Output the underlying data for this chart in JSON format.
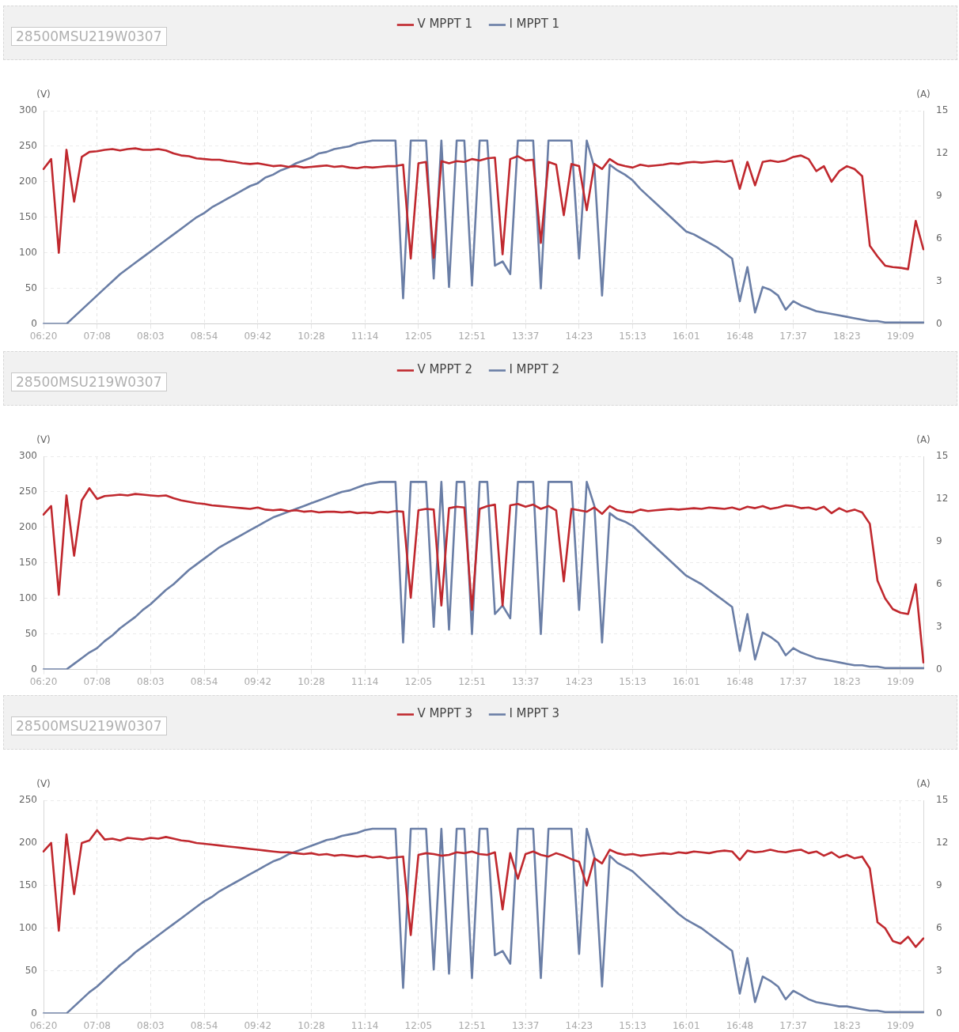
{
  "chart_data": [
    {
      "type": "line",
      "subtitle": "28500MSU219W0307",
      "ylabel": "(V)",
      "y2label": "(A)",
      "grid": true,
      "legend": "top",
      "categories": [
        "06:20",
        null,
        null,
        null,
        null,
        null,
        null,
        "07:08",
        null,
        null,
        null,
        null,
        null,
        null,
        "08:03",
        null,
        null,
        null,
        null,
        null,
        null,
        "08:54",
        null,
        null,
        null,
        null,
        null,
        null,
        "09:42",
        null,
        null,
        null,
        null,
        null,
        null,
        "10:28",
        null,
        null,
        null,
        null,
        null,
        null,
        "11:14",
        null,
        null,
        null,
        null,
        null,
        null,
        "12:05",
        null,
        null,
        null,
        null,
        null,
        null,
        "12:51",
        null,
        null,
        null,
        null,
        null,
        null,
        "13:37",
        null,
        null,
        null,
        null,
        null,
        null,
        "14:23",
        null,
        null,
        null,
        null,
        null,
        null,
        "15:13",
        null,
        null,
        null,
        null,
        null,
        null,
        "16:01",
        null,
        null,
        null,
        null,
        null,
        null,
        "16:48",
        null,
        null,
        null,
        null,
        null,
        null,
        "17:37",
        null,
        null,
        null,
        null,
        null,
        null,
        "18:23",
        null,
        null,
        null,
        null,
        null,
        null,
        "19:09",
        null,
        null,
        null
      ],
      "ylim": [
        0,
        300
      ],
      "yticks": [
        0,
        50,
        100,
        150,
        200,
        250,
        300
      ],
      "y2lim": [
        0,
        15
      ],
      "y2ticks": [
        0,
        3,
        6,
        9,
        12,
        15
      ],
      "series": [
        {
          "name": "V MPPT 1",
          "color": "#c0282e",
          "values": [
            218,
            232,
            100,
            245,
            172,
            235,
            242,
            243,
            245,
            246,
            244,
            246,
            247,
            245,
            245,
            246,
            244,
            240,
            237,
            236,
            233,
            232,
            231,
            231,
            229,
            228,
            226,
            225,
            226,
            224,
            222,
            223,
            221,
            222,
            220,
            221,
            222,
            223,
            221,
            222,
            220,
            219,
            221,
            220,
            221,
            222,
            222,
            224,
            92,
            226,
            228,
            93,
            229,
            226,
            229,
            228,
            232,
            230,
            233,
            234,
            98,
            232,
            236,
            230,
            231,
            114,
            228,
            224,
            153,
            225,
            222,
            160,
            225,
            218,
            232,
            225,
            222,
            220,
            224,
            222,
            223,
            224,
            226,
            225,
            227,
            228,
            227,
            228,
            229,
            228,
            230,
            190,
            228,
            195,
            228,
            230,
            228,
            230,
            235,
            237,
            232,
            215,
            222,
            200,
            215,
            222,
            218,
            208,
            110,
            95,
            82,
            80,
            79,
            77,
            145,
            105
          ]
        },
        {
          "name": "I MPPT 1",
          "color": "#6a7ea6",
          "axis": "y2",
          "values": [
            0,
            0,
            0,
            0,
            0.5,
            1.0,
            1.5,
            2.0,
            2.5,
            3.0,
            3.5,
            3.9,
            4.3,
            4.7,
            5.1,
            5.5,
            5.9,
            6.3,
            6.7,
            7.1,
            7.5,
            7.8,
            8.2,
            8.5,
            8.8,
            9.1,
            9.4,
            9.7,
            9.9,
            10.3,
            10.5,
            10.8,
            11.0,
            11.3,
            11.5,
            11.7,
            12.0,
            12.1,
            12.3,
            12.4,
            12.5,
            12.7,
            12.8,
            12.9,
            12.9,
            12.9,
            12.9,
            1.8,
            12.9,
            12.9,
            12.9,
            3.2,
            12.9,
            2.6,
            12.9,
            12.9,
            2.7,
            12.9,
            12.9,
            4.1,
            4.4,
            3.5,
            12.9,
            12.9,
            12.9,
            2.5,
            12.9,
            12.9,
            12.9,
            12.9,
            4.6,
            12.9,
            11.0,
            2.0,
            11.2,
            10.8,
            10.5,
            10.1,
            9.5,
            9.0,
            8.5,
            8.0,
            7.5,
            7.0,
            6.5,
            6.3,
            6.0,
            5.7,
            5.4,
            5.0,
            4.6,
            1.6,
            4.0,
            0.8,
            2.6,
            2.4,
            2.0,
            1.0,
            1.6,
            1.3,
            1.1,
            0.9,
            0.8,
            0.7,
            0.6,
            0.5,
            0.4,
            0.3,
            0.2,
            0.2,
            0.1,
            0.1,
            0.1,
            0.1,
            0.1,
            0.1
          ]
        }
      ]
    },
    {
      "type": "line",
      "subtitle": "28500MSU219W0307",
      "ylabel": "(V)",
      "y2label": "(A)",
      "grid": true,
      "legend": "top",
      "categories": [
        "06:20",
        null,
        null,
        null,
        null,
        null,
        null,
        "07:08",
        null,
        null,
        null,
        null,
        null,
        null,
        "08:03",
        null,
        null,
        null,
        null,
        null,
        null,
        "08:54",
        null,
        null,
        null,
        null,
        null,
        null,
        "09:42",
        null,
        null,
        null,
        null,
        null,
        null,
        "10:28",
        null,
        null,
        null,
        null,
        null,
        null,
        "11:14",
        null,
        null,
        null,
        null,
        null,
        null,
        "12:05",
        null,
        null,
        null,
        null,
        null,
        null,
        "12:51",
        null,
        null,
        null,
        null,
        null,
        null,
        "13:37",
        null,
        null,
        null,
        null,
        null,
        null,
        "14:23",
        null,
        null,
        null,
        null,
        null,
        null,
        "15:13",
        null,
        null,
        null,
        null,
        null,
        null,
        "16:01",
        null,
        null,
        null,
        null,
        null,
        null,
        "16:48",
        null,
        null,
        null,
        null,
        null,
        null,
        "17:37",
        null,
        null,
        null,
        null,
        null,
        null,
        "18:23",
        null,
        null,
        null,
        null,
        null,
        null,
        "19:09",
        null,
        null,
        null
      ],
      "ylim": [
        0,
        300
      ],
      "yticks": [
        0,
        50,
        100,
        150,
        200,
        250,
        300
      ],
      "y2lim": [
        0,
        15
      ],
      "y2ticks": [
        0,
        3,
        6,
        9,
        12,
        15
      ],
      "series": [
        {
          "name": "V MPPT 2",
          "color": "#c0282e",
          "values": [
            218,
            230,
            105,
            245,
            160,
            238,
            255,
            240,
            244,
            245,
            246,
            245,
            247,
            246,
            245,
            244,
            245,
            241,
            238,
            236,
            234,
            233,
            231,
            230,
            229,
            228,
            227,
            226,
            228,
            225,
            224,
            225,
            223,
            224,
            222,
            223,
            221,
            222,
            222,
            221,
            222,
            220,
            221,
            220,
            222,
            221,
            223,
            222,
            101,
            224,
            226,
            225,
            90,
            227,
            229,
            228,
            84,
            226,
            230,
            232,
            90,
            231,
            233,
            229,
            232,
            226,
            230,
            224,
            124,
            226,
            224,
            222,
            228,
            219,
            230,
            224,
            222,
            221,
            225,
            223,
            224,
            225,
            226,
            225,
            226,
            227,
            226,
            228,
            227,
            226,
            228,
            225,
            229,
            227,
            230,
            226,
            228,
            231,
            230,
            227,
            228,
            225,
            229,
            220,
            227,
            222,
            225,
            221,
            205,
            125,
            100,
            85,
            80,
            78,
            120,
            10
          ]
        },
        {
          "name": "I MPPT 2",
          "color": "#6a7ea6",
          "axis": "y2",
          "values": [
            0,
            0,
            0,
            0,
            0.4,
            0.8,
            1.2,
            1.5,
            2.0,
            2.4,
            2.9,
            3.3,
            3.7,
            4.2,
            4.6,
            5.1,
            5.6,
            6.0,
            6.5,
            7.0,
            7.4,
            7.8,
            8.2,
            8.6,
            8.9,
            9.2,
            9.5,
            9.8,
            10.1,
            10.4,
            10.7,
            10.9,
            11.1,
            11.3,
            11.5,
            11.7,
            11.9,
            12.1,
            12.3,
            12.5,
            12.6,
            12.8,
            13.0,
            13.1,
            13.2,
            13.2,
            13.2,
            1.9,
            13.2,
            13.2,
            13.2,
            3.0,
            13.2,
            2.8,
            13.2,
            13.2,
            2.5,
            13.2,
            13.2,
            3.9,
            4.5,
            3.6,
            13.2,
            13.2,
            13.2,
            2.5,
            13.2,
            13.2,
            13.2,
            13.2,
            4.2,
            13.2,
            11.5,
            1.9,
            11.0,
            10.6,
            10.4,
            10.1,
            9.6,
            9.1,
            8.6,
            8.1,
            7.6,
            7.1,
            6.6,
            6.3,
            6.0,
            5.6,
            5.2,
            4.8,
            4.4,
            1.3,
            3.9,
            0.7,
            2.6,
            2.3,
            1.9,
            1.0,
            1.5,
            1.2,
            1.0,
            0.8,
            0.7,
            0.6,
            0.5,
            0.4,
            0.3,
            0.3,
            0.2,
            0.2,
            0.1,
            0.1,
            0.1,
            0.1,
            0.1,
            0.1
          ]
        }
      ]
    },
    {
      "type": "line",
      "subtitle": "28500MSU219W0307",
      "ylabel": "(V)",
      "y2label": "(A)",
      "grid": true,
      "legend": "top",
      "categories": [
        "06:20",
        null,
        null,
        null,
        null,
        null,
        null,
        "07:08",
        null,
        null,
        null,
        null,
        null,
        null,
        "08:03",
        null,
        null,
        null,
        null,
        null,
        null,
        "08:54",
        null,
        null,
        null,
        null,
        null,
        null,
        "09:42",
        null,
        null,
        null,
        null,
        null,
        null,
        "10:28",
        null,
        null,
        null,
        null,
        null,
        null,
        "11:14",
        null,
        null,
        null,
        null,
        null,
        null,
        "12:05",
        null,
        null,
        null,
        null,
        null,
        null,
        "12:51",
        null,
        null,
        null,
        null,
        null,
        null,
        "13:37",
        null,
        null,
        null,
        null,
        null,
        null,
        "14:23",
        null,
        null,
        null,
        null,
        null,
        null,
        "15:13",
        null,
        null,
        null,
        null,
        null,
        null,
        "16:01",
        null,
        null,
        null,
        null,
        null,
        null,
        "16:48",
        null,
        null,
        null,
        null,
        null,
        null,
        "17:37",
        null,
        null,
        null,
        null,
        null,
        null,
        "18:23",
        null,
        null,
        null,
        null,
        null,
        null,
        "19:09",
        null,
        null,
        null
      ],
      "ylim": [
        0,
        250
      ],
      "yticks": [
        0,
        50,
        100,
        150,
        200,
        250
      ],
      "y2lim": [
        0,
        15
      ],
      "y2ticks": [
        0,
        3,
        6,
        9,
        12,
        15
      ],
      "series": [
        {
          "name": "V MPPT 3",
          "color": "#c0282e",
          "values": [
            190,
            200,
            97,
            210,
            140,
            200,
            203,
            215,
            204,
            205,
            203,
            206,
            205,
            204,
            206,
            205,
            207,
            205,
            203,
            202,
            200,
            199,
            198,
            197,
            196,
            195,
            194,
            193,
            192,
            191,
            190,
            189,
            189,
            188,
            187,
            188,
            186,
            187,
            185,
            186,
            185,
            184,
            185,
            183,
            184,
            182,
            183,
            184,
            92,
            186,
            188,
            187,
            185,
            186,
            189,
            188,
            190,
            187,
            186,
            189,
            122,
            188,
            158,
            187,
            190,
            186,
            184,
            188,
            185,
            181,
            178,
            150,
            182,
            176,
            192,
            188,
            186,
            187,
            185,
            186,
            187,
            188,
            187,
            189,
            188,
            190,
            189,
            188,
            190,
            191,
            190,
            180,
            191,
            189,
            190,
            192,
            190,
            189,
            191,
            192,
            188,
            190,
            185,
            189,
            183,
            186,
            182,
            184,
            170,
            107,
            100,
            85,
            82,
            90,
            78,
            88
          ]
        },
        {
          "name": "I MPPT 3",
          "color": "#6a7ea6",
          "axis": "y2",
          "values": [
            0,
            0,
            0,
            0,
            0.5,
            1.0,
            1.5,
            1.9,
            2.4,
            2.9,
            3.4,
            3.8,
            4.3,
            4.7,
            5.1,
            5.5,
            5.9,
            6.3,
            6.7,
            7.1,
            7.5,
            7.9,
            8.2,
            8.6,
            8.9,
            9.2,
            9.5,
            9.8,
            10.1,
            10.4,
            10.7,
            10.9,
            11.2,
            11.4,
            11.6,
            11.8,
            12.0,
            12.2,
            12.3,
            12.5,
            12.6,
            12.7,
            12.9,
            13.0,
            13.0,
            13.0,
            13.0,
            1.8,
            13.0,
            13.0,
            13.0,
            3.1,
            13.0,
            2.8,
            13.0,
            13.0,
            2.5,
            13.0,
            13.0,
            4.1,
            4.4,
            3.5,
            13.0,
            13.0,
            13.0,
            2.5,
            13.0,
            13.0,
            13.0,
            13.0,
            4.2,
            13.0,
            11.0,
            1.9,
            11.1,
            10.6,
            10.3,
            10.0,
            9.5,
            9.0,
            8.5,
            8.0,
            7.5,
            7.0,
            6.6,
            6.3,
            6.0,
            5.6,
            5.2,
            4.8,
            4.4,
            1.4,
            3.9,
            0.8,
            2.6,
            2.3,
            1.9,
            1.0,
            1.6,
            1.3,
            1.0,
            0.8,
            0.7,
            0.6,
            0.5,
            0.5,
            0.4,
            0.3,
            0.2,
            0.2,
            0.1,
            0.1,
            0.1,
            0.1,
            0.1,
            0.1
          ]
        }
      ]
    }
  ]
}
